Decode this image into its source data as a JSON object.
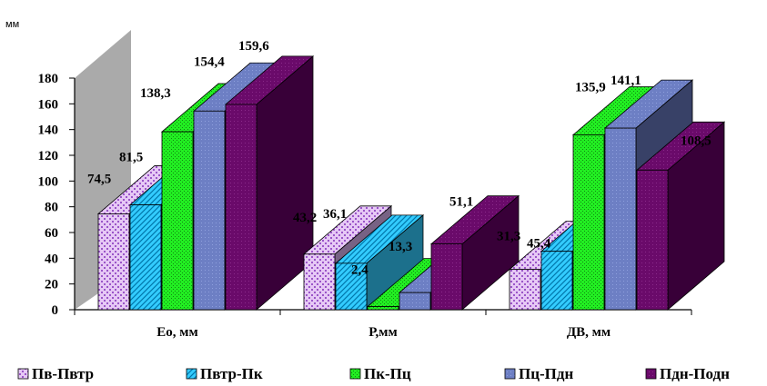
{
  "chart_data": {
    "type": "bar",
    "unit_label": "мм",
    "categories": [
      "Ео, мм",
      "Р,мм",
      "ДВ, мм"
    ],
    "series": [
      {
        "name": "Пв-Пвтр",
        "values": [
          74.5,
          43.2,
          31.3
        ],
        "labels": [
          "74,5",
          "43,2",
          "31,3"
        ]
      },
      {
        "name": "Пвтр-Пк",
        "values": [
          81.5,
          36.1,
          45.4
        ],
        "labels": [
          "81,5",
          "36,1",
          "45,4"
        ]
      },
      {
        "name": "Пк-Пц",
        "values": [
          138.3,
          2.4,
          135.9
        ],
        "labels": [
          "138,3",
          "2,4",
          "135,9"
        ]
      },
      {
        "name": "Пц-Пдн",
        "values": [
          154.4,
          13.3,
          141.1
        ],
        "labels": [
          "154,4",
          "13,3",
          "141,1"
        ]
      },
      {
        "name": "Пдн-Подн",
        "values": [
          159.6,
          51.1,
          108.5
        ],
        "labels": [
          "159,6",
          "51,1",
          "108,5"
        ]
      }
    ],
    "y_ticks": [
      "0",
      "20",
      "40",
      "60",
      "80",
      "100",
      "120",
      "140",
      "160",
      "180"
    ],
    "ylim": [
      0,
      180
    ],
    "legend_position": "bottom",
    "colors": [
      "#d9b3f0",
      "#33ccff",
      "#22dd22",
      "#6677bb",
      "#660066"
    ]
  }
}
